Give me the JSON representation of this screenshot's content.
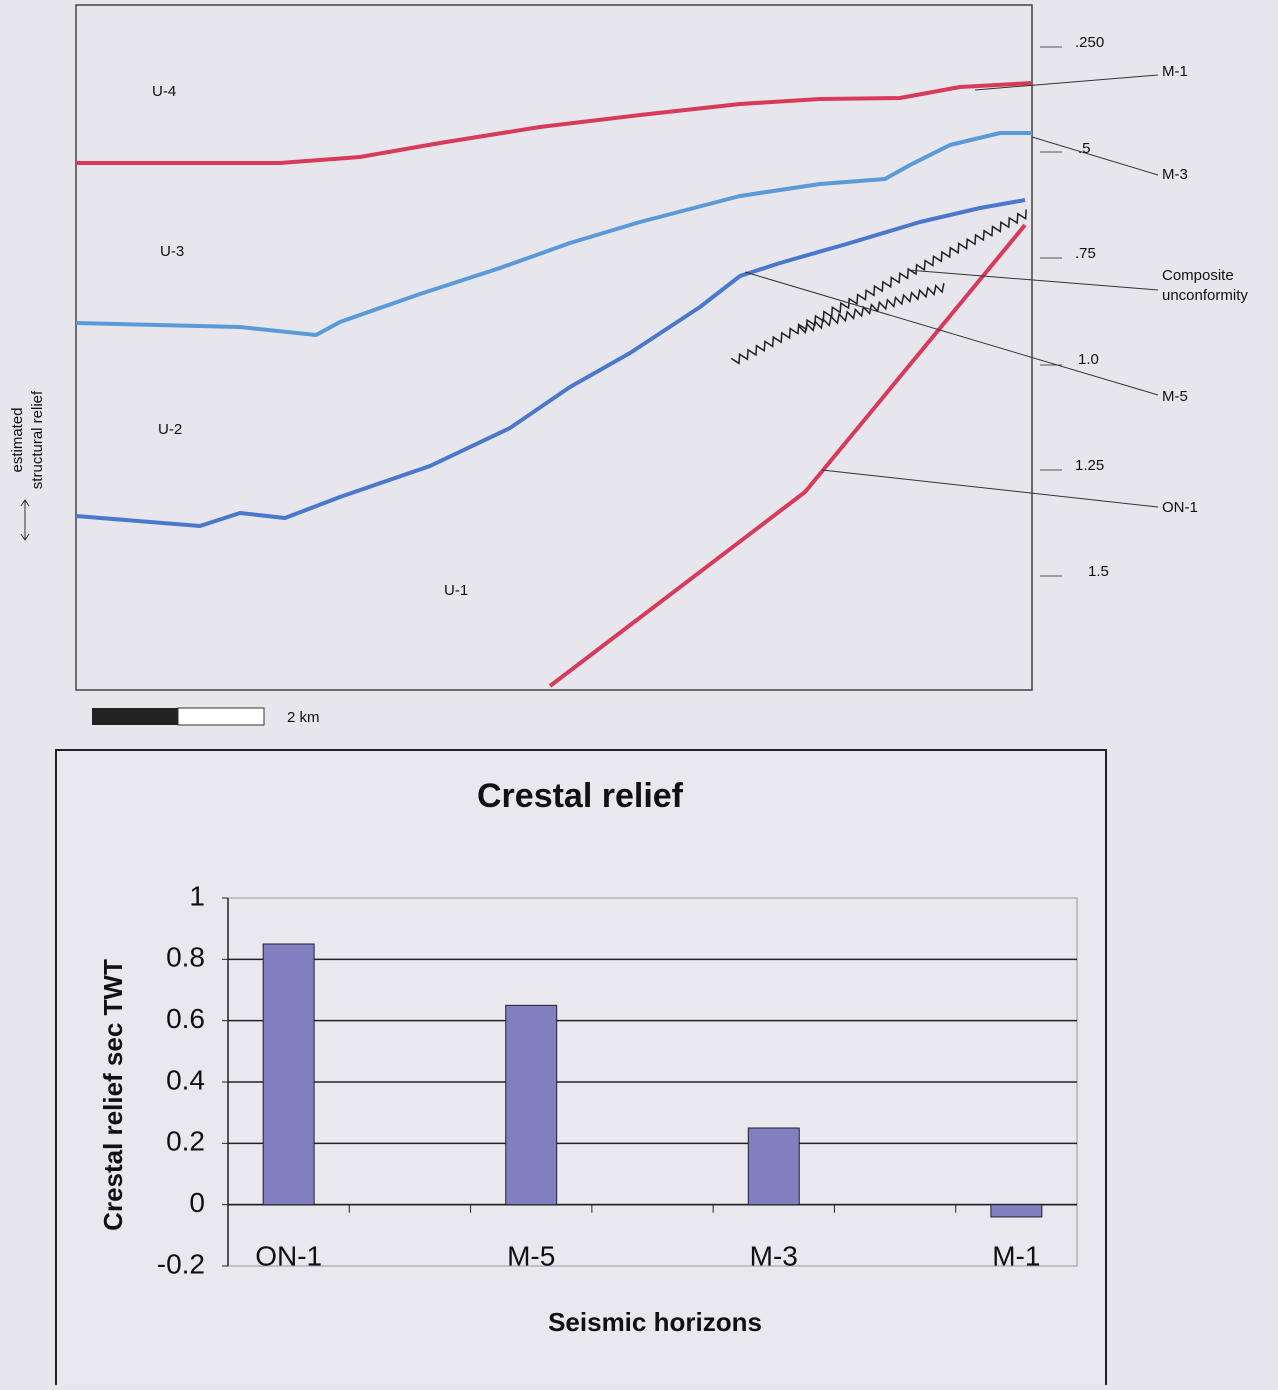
{
  "section": {
    "unit_labels": [
      "U-4",
      "U-3",
      "U-2",
      "U-1"
    ],
    "depth_labels": [
      ".250",
      ".5",
      ".75",
      "1.0",
      "1.25",
      "1.5"
    ],
    "horizon_labels": [
      "M-1",
      "M-3",
      "M-5",
      "ON-1"
    ],
    "composite_label": [
      "Composite",
      "unconformity"
    ],
    "relief_label": [
      "estimated",
      "structural relief"
    ],
    "scale_label": "2 km"
  },
  "chart_data": {
    "type": "bar",
    "title": "Crestal relief",
    "x_label": "Seismic horizons",
    "y_label": "Crestal relief sec TWT",
    "categories": [
      "ON-1",
      null,
      "M-5",
      null,
      "M-3",
      null,
      "M-1"
    ],
    "values": [
      0.85,
      null,
      0.65,
      null,
      0.25,
      null,
      -0.04
    ],
    "color": "#8080c0",
    "ylim": [
      -0.2,
      1
    ],
    "yticks": [
      -0.2,
      0,
      0.2,
      0.4,
      0.6,
      0.8,
      1
    ],
    "grid": true
  }
}
